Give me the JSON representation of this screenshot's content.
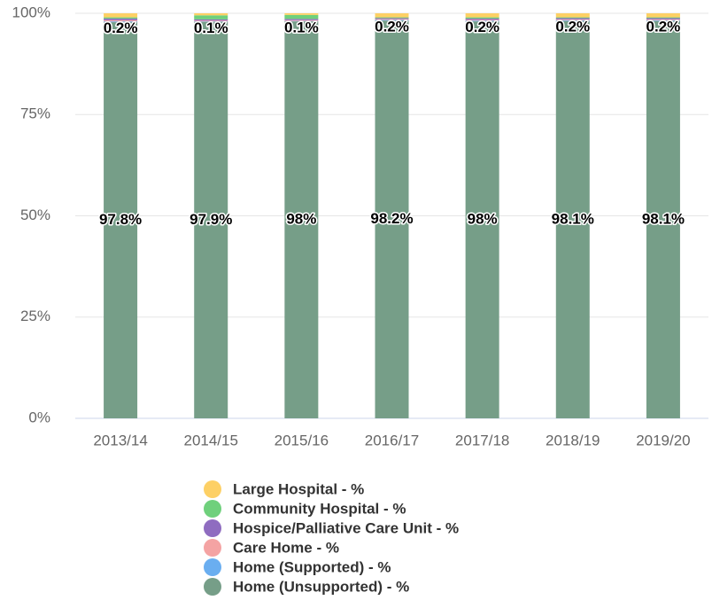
{
  "chart_data": {
    "type": "bar",
    "stacked": true,
    "categories": [
      "2013/14",
      "2014/15",
      "2015/16",
      "2016/17",
      "2017/18",
      "2018/19",
      "2019/20"
    ],
    "series": [
      {
        "name": "Large Hospital - %",
        "color": "#fdd065",
        "values": [
          1.0,
          0.5,
          0.4,
          1.0,
          1.0,
          1.0,
          1.0
        ]
      },
      {
        "name": "Community Hospital - %",
        "color": "#6fd07c",
        "values": [
          0.3,
          1.0,
          1.0,
          0.2,
          0.3,
          0.2,
          0.2
        ]
      },
      {
        "name": "Hospice/Palliative Care Unit - %",
        "color": "#8f6cc0",
        "values": [
          0.4,
          0.3,
          0.3,
          0.2,
          0.3,
          0.3,
          0.3
        ]
      },
      {
        "name": "Care Home - %",
        "color": "#f4a3a3",
        "values": [
          0.3,
          0.2,
          0.2,
          0.2,
          0.2,
          0.2,
          0.2
        ]
      },
      {
        "name": "Home (Supported) - %",
        "color": "#6aaef0",
        "values": [
          0.2,
          0.1,
          0.1,
          0.2,
          0.2,
          0.2,
          0.2
        ],
        "value_labels": [
          "0.2%",
          "0.1%",
          "0.1%",
          "0.2%",
          "0.2%",
          "0.2%",
          "0.2%"
        ]
      },
      {
        "name": "Home (Unsupported) - %",
        "color": "#769e88",
        "values": [
          97.8,
          97.9,
          98,
          98.2,
          98,
          98.1,
          98.1
        ],
        "value_labels": [
          "97.8%",
          "97.9%",
          "98%",
          "98.2%",
          "98%",
          "98.1%",
          "98.1%"
        ]
      }
    ],
    "ylim": [
      0,
      100
    ],
    "yticks": [
      {
        "value": 0,
        "label": "0%"
      },
      {
        "value": 25,
        "label": "25%"
      },
      {
        "value": 50,
        "label": "50%"
      },
      {
        "value": 75,
        "label": "75%"
      },
      {
        "value": 100,
        "label": "100%"
      }
    ],
    "grid": true
  }
}
